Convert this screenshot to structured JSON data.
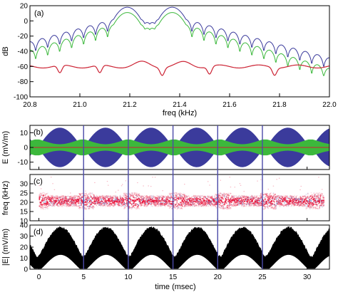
{
  "chart_data": [
    {
      "type": "line",
      "panel_label": "(a)",
      "xlabel": "freq (kHz)",
      "ylabel": "dB",
      "xlim": [
        20.8,
        22.0
      ],
      "ylim": [
        -100,
        20
      ],
      "xticks": [
        "20.8",
        "21.0",
        "21.2",
        "21.4",
        "21.6",
        "21.8",
        "22.0"
      ],
      "yticks": [
        "-100",
        "-80",
        "-60",
        "-40",
        "-20",
        "0",
        "20"
      ],
      "colors": {
        "blue": "#3b3b9c",
        "green": "#3cb83c",
        "red": "#cc2233"
      },
      "series": [
        {
          "color": "blue",
          "peaks_khz": [
            21.19,
            21.37
          ],
          "peak_db": 18
        },
        {
          "color": "green",
          "peaks_khz": [
            21.19,
            21.37
          ],
          "peak_db": 13
        },
        {
          "color": "red",
          "baseline_db": -60,
          "peak_db": -54
        }
      ]
    },
    {
      "type": "area",
      "panel_label": "(b)",
      "ylabel": "E (mV/m)",
      "xlim": [
        -1,
        32.5
      ],
      "ylim": [
        -15,
        15
      ],
      "yticks": [
        "-10",
        "0",
        "10"
      ],
      "period_ms": 5.1,
      "colors": {
        "envelope": "#3b3b9c",
        "inner": "#3cb83c",
        "line": "#cc2233"
      }
    },
    {
      "type": "heatmap",
      "panel_label": "(c)",
      "ylabel": "freq (kHz)",
      "xlim": [
        -1,
        32.5
      ],
      "ylim": [
        10,
        35
      ],
      "yticks": [
        "10",
        "15",
        "20",
        "25",
        "30"
      ],
      "center_khz": 21,
      "colors": {
        "main": "#e8153c",
        "secondary": "#8fa0d6"
      }
    },
    {
      "type": "area",
      "panel_label": "(d)",
      "xlabel": "time (msec)",
      "ylabel": "|E| (mV/m)",
      "xlim": [
        -1,
        32.5
      ],
      "ylim": [
        0,
        40
      ],
      "xticks": [
        "0",
        "5",
        "10",
        "15",
        "20",
        "25",
        "30"
      ],
      "yticks": [
        "0",
        "10",
        "20",
        "30",
        "40"
      ],
      "colors": {
        "fill": "#000000"
      }
    }
  ],
  "markers_ms": [
    5,
    10,
    15,
    20,
    25
  ],
  "marker_color": "#4b4aa8"
}
